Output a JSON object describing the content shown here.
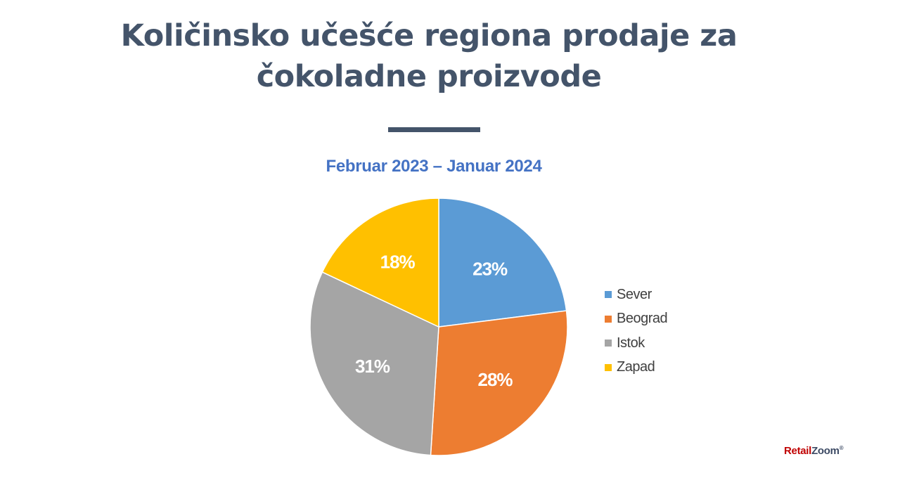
{
  "title": "Količinsko učešće regiona prodaje za čokoladne proizvode",
  "title_lines": [
    "Količinsko učešće regiona prodaje za",
    "čokoladne proizvode"
  ],
  "colors": {
    "title": "#44546a",
    "subtitle": "#4472c4",
    "sever": "#5b9bd5",
    "beograd": "#ed7d31",
    "istok": "#a5a5a5",
    "zapad": "#ffc000"
  },
  "chart_data": {
    "type": "pie",
    "title": "Količinsko učešće regiona prodaje za čokoladne proizvode",
    "subtitle": "Februar 2023 – Januar 2024",
    "categories": [
      "Sever",
      "Beograd",
      "Istok",
      "Zapad"
    ],
    "values": [
      23,
      28,
      31,
      18
    ],
    "value_labels": [
      "23%",
      "28%",
      "31%",
      "18%"
    ],
    "slice_colors": [
      "#5b9bd5",
      "#ed7d31",
      "#a5a5a5",
      "#ffc000"
    ],
    "legend_position": "right"
  },
  "brand": {
    "part1": "Retail",
    "part2": "Zoom",
    "mark": "®"
  }
}
